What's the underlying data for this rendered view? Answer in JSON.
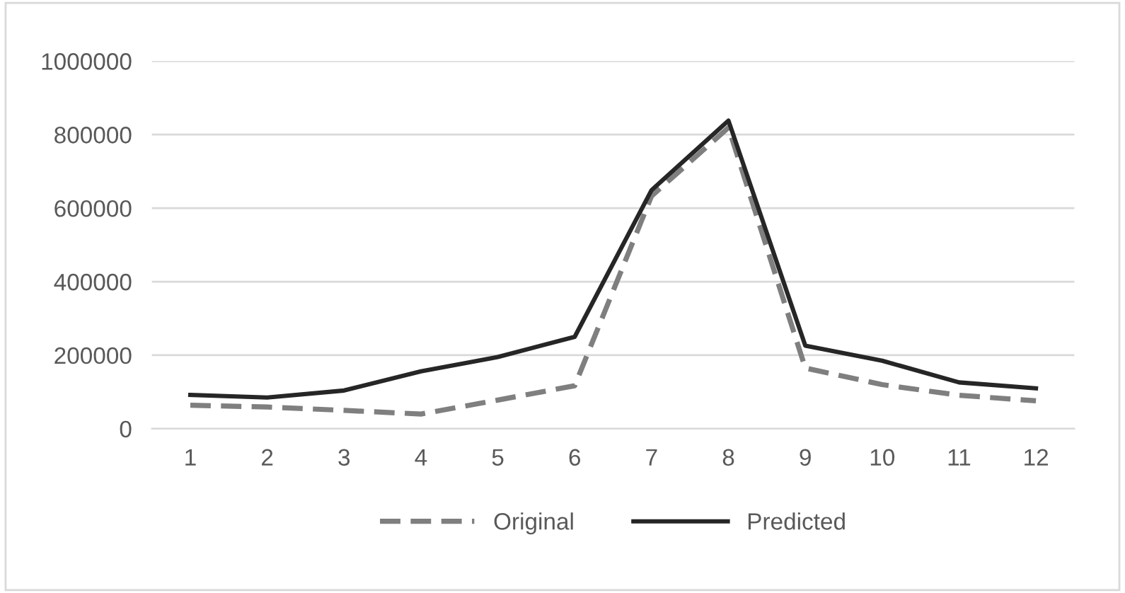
{
  "chart_data": {
    "type": "line",
    "categories": [
      "1",
      "2",
      "3",
      "4",
      "5",
      "6",
      "7",
      "8",
      "9",
      "10",
      "11",
      "12"
    ],
    "series": [
      {
        "name": "Original",
        "color": "#7f7f7f",
        "line_style": "dashed",
        "values": [
          64000,
          59000,
          50000,
          40000,
          78000,
          117000,
          633000,
          819000,
          165000,
          120000,
          91000,
          76000
        ]
      },
      {
        "name": "Predicted",
        "color": "#262626",
        "line_style": "solid",
        "values": [
          92000,
          85000,
          104000,
          156000,
          195000,
          250000,
          649000,
          838000,
          226000,
          185000,
          126000,
          110000
        ]
      }
    ],
    "ylim": [
      0,
      1000000
    ],
    "yticks": [
      0,
      200000,
      400000,
      600000,
      800000,
      1000000
    ],
    "grid": "y",
    "legend": "bottom",
    "marker": "none"
  }
}
